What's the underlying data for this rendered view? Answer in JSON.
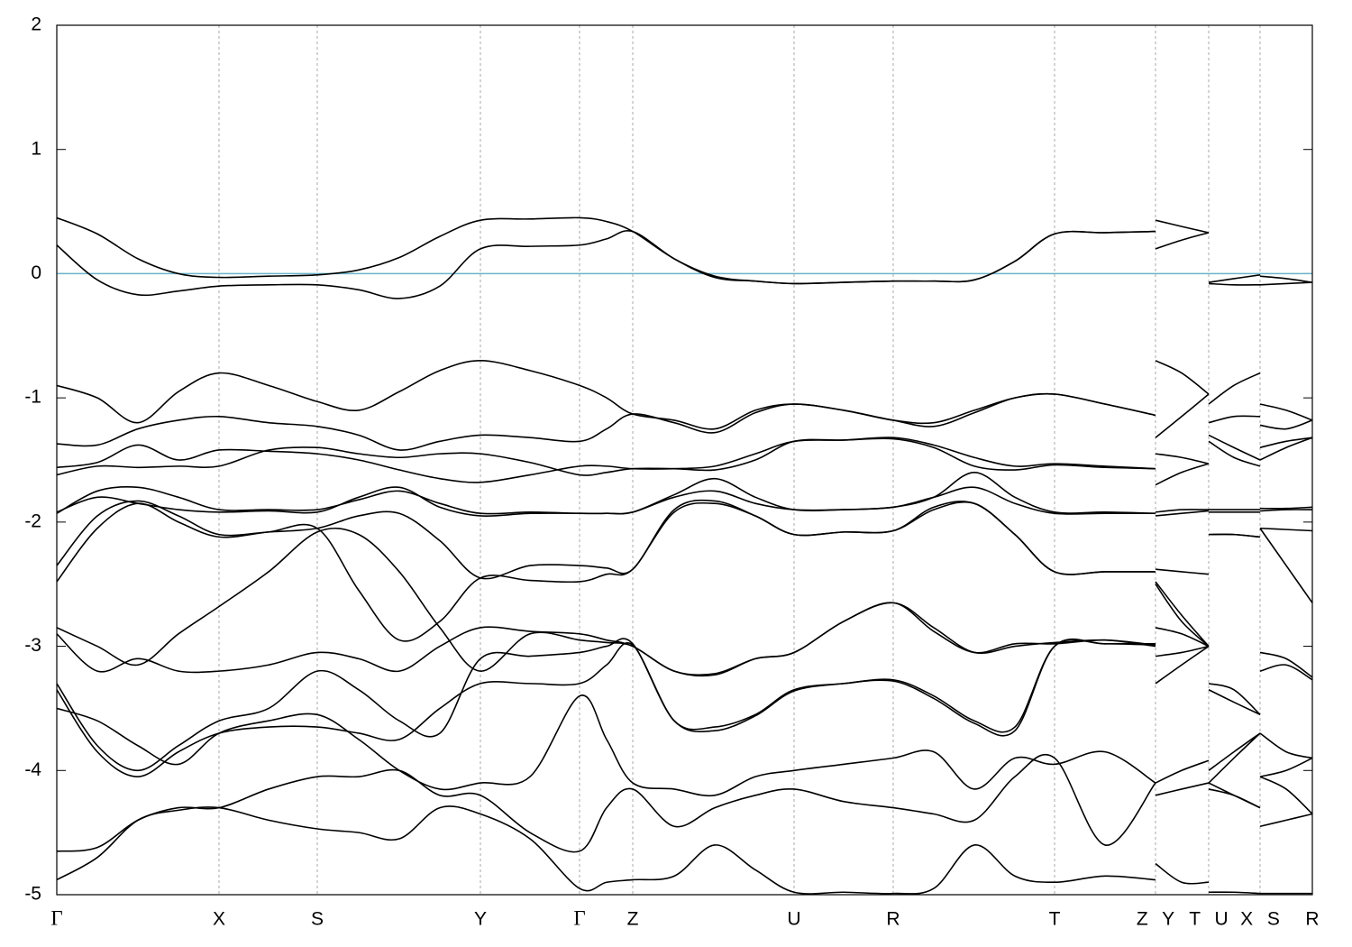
{
  "chart_data": {
    "type": "line",
    "xlim": [
      0,
      1393
    ],
    "xticks": [
      {
        "value": 0,
        "label": "Γ"
      },
      {
        "value": 180,
        "label": "X"
      },
      {
        "value": 289,
        "label": "S"
      },
      {
        "value": 470,
        "label": "Y"
      },
      {
        "value": 580,
        "label": "Γ"
      },
      {
        "value": 639,
        "label": "Z"
      },
      {
        "value": 818,
        "label": "U"
      },
      {
        "value": 928,
        "label": "R"
      },
      {
        "value": 1107,
        "label": "T"
      },
      {
        "value": 1219,
        "label": "Z Y"
      },
      {
        "value": 1278,
        "label": "T U"
      },
      {
        "value": 1335,
        "label": "X S"
      },
      {
        "value": 1393,
        "label": "R"
      }
    ],
    "ylim": [
      -5,
      2
    ],
    "yticks": [
      -5,
      -4,
      -3,
      -2,
      -1,
      0,
      1,
      2
    ],
    "grid": true,
    "hline": {
      "value": 0,
      "color": "#6ab4c9"
    },
    "x": [
      0,
      45,
      90,
      135,
      180,
      235,
      289,
      335,
      380,
      425,
      470,
      525,
      580,
      610,
      639,
      685,
      730,
      775,
      818,
      873,
      928,
      973,
      1018,
      1063,
      1107,
      1163,
      1219,
      1219,
      1219,
      1248,
      1278,
      1278,
      1278,
      1306,
      1335,
      1335,
      1335,
      1364,
      1393
    ],
    "series": [
      {
        "color": "#000000",
        "values": [
          0.45,
          0.32,
          0.12,
          0.0,
          -0.03,
          -0.02,
          -0.01,
          0.03,
          0.13,
          0.3,
          0.43,
          0.44,
          0.45,
          0.42,
          0.34,
          0.12,
          -0.02,
          -0.06,
          -0.08,
          -0.07,
          -0.06,
          -0.06,
          -0.05,
          0.1,
          0.32,
          0.33,
          0.34,
          null,
          0.43,
          0.38,
          0.33,
          null,
          -0.07,
          -0.04,
          -0.01,
          null,
          -0.09,
          -0.08,
          -0.07
        ]
      },
      {
        "color": "#000000",
        "values": [
          0.23,
          -0.05,
          -0.17,
          -0.14,
          -0.1,
          -0.09,
          -0.09,
          -0.13,
          -0.2,
          -0.1,
          0.2,
          0.22,
          0.23,
          0.28,
          0.34,
          0.12,
          -0.03,
          -0.06,
          -0.08,
          -0.07,
          -0.06,
          -0.06,
          -0.05,
          0.1,
          0.32,
          0.33,
          0.34,
          null,
          0.2,
          0.27,
          0.33,
          null,
          -0.08,
          -0.09,
          -0.09,
          null,
          -0.02,
          -0.04,
          -0.07
        ]
      },
      {
        "color": "#000000",
        "values": [
          -0.9,
          -1.0,
          -1.2,
          -0.95,
          -0.8,
          -0.9,
          -1.03,
          -1.1,
          -0.95,
          -0.78,
          -0.7,
          -0.78,
          -0.9,
          -1.0,
          -1.13,
          -1.18,
          -1.25,
          -1.1,
          -1.05,
          -1.1,
          -1.18,
          -1.2,
          -1.1,
          -1.0,
          -0.97,
          -1.05,
          -1.14,
          null,
          -0.7,
          -0.8,
          -0.97,
          null,
          -1.05,
          -0.9,
          -0.8,
          null,
          -1.05,
          -1.1,
          -1.18
        ]
      },
      {
        "color": "#000000",
        "values": [
          -1.37,
          -1.38,
          -1.25,
          -1.18,
          -1.15,
          -1.2,
          -1.23,
          -1.3,
          -1.42,
          -1.35,
          -1.3,
          -1.32,
          -1.35,
          -1.25,
          -1.13,
          -1.2,
          -1.28,
          -1.12,
          -1.05,
          -1.1,
          -1.18,
          -1.23,
          -1.12,
          -1.0,
          -0.97,
          -1.05,
          -1.14,
          null,
          -1.32,
          -1.15,
          -0.97,
          null,
          -1.2,
          -1.15,
          -1.15,
          null,
          -1.22,
          -1.25,
          -1.18
        ]
      },
      {
        "color": "#000000",
        "values": [
          -1.56,
          -1.52,
          -1.38,
          -1.5,
          -1.42,
          -1.43,
          -1.45,
          -1.5,
          -1.58,
          -1.65,
          -1.68,
          -1.62,
          -1.55,
          -1.55,
          -1.57,
          -1.57,
          -1.55,
          -1.45,
          -1.35,
          -1.34,
          -1.32,
          -1.38,
          -1.48,
          -1.55,
          -1.53,
          -1.55,
          -1.57,
          null,
          -1.45,
          -1.48,
          -1.53,
          null,
          -1.3,
          -1.4,
          -1.5,
          null,
          -1.4,
          -1.35,
          -1.32
        ]
      },
      {
        "color": "#000000",
        "values": [
          -1.62,
          -1.55,
          -1.56,
          -1.55,
          -1.55,
          -1.42,
          -1.4,
          -1.45,
          -1.48,
          -1.45,
          -1.45,
          -1.52,
          -1.62,
          -1.6,
          -1.57,
          -1.57,
          -1.58,
          -1.5,
          -1.35,
          -1.34,
          -1.33,
          -1.4,
          -1.55,
          -1.58,
          -1.54,
          -1.56,
          -1.57,
          null,
          -1.7,
          -1.6,
          -1.53,
          null,
          -1.35,
          -1.48,
          -1.55,
          null,
          -1.5,
          -1.4,
          -1.32
        ]
      },
      {
        "color": "#000000",
        "values": [
          -1.93,
          -1.75,
          -1.72,
          -1.8,
          -1.9,
          -1.9,
          -1.9,
          -1.82,
          -1.75,
          -1.85,
          -1.93,
          -1.92,
          -1.93,
          -1.93,
          -1.92,
          -1.78,
          -1.65,
          -1.8,
          -1.9,
          -1.9,
          -1.88,
          -1.8,
          -1.6,
          -1.8,
          -1.92,
          -1.92,
          -1.93,
          null,
          -1.92,
          -1.9,
          -1.9,
          null,
          -1.9,
          -1.9,
          -1.9,
          null,
          -1.89,
          -1.89,
          -1.88
        ]
      },
      {
        "color": "#000000",
        "values": [
          -1.92,
          -1.8,
          -1.85,
          -1.9,
          -1.92,
          -1.91,
          -1.92,
          -1.8,
          -1.72,
          -1.88,
          -1.95,
          -1.93,
          -1.93,
          -1.93,
          -1.92,
          -1.8,
          -1.75,
          -1.85,
          -1.9,
          -1.9,
          -1.88,
          -1.8,
          -1.72,
          -1.85,
          -1.93,
          -1.93,
          -1.93,
          null,
          -1.95,
          -1.93,
          -1.91,
          null,
          -1.92,
          -1.92,
          -1.92,
          null,
          -1.91,
          -1.9,
          -1.9
        ]
      },
      {
        "color": "#000000",
        "values": [
          -2.35,
          -1.95,
          -1.83,
          -1.95,
          -2.1,
          -2.08,
          -2.05,
          -1.95,
          -1.93,
          -2.15,
          -2.45,
          -2.35,
          -2.35,
          -2.37,
          -2.38,
          -1.9,
          -1.83,
          -1.95,
          -2.1,
          -2.08,
          -2.07,
          -1.9,
          -1.85,
          -2.1,
          -2.4,
          -2.4,
          -2.4,
          null,
          -2.38,
          -2.4,
          -2.42,
          null,
          -2.1,
          -2.1,
          -2.12,
          null,
          -2.05,
          -2.06,
          -2.07
        ]
      },
      {
        "color": "#000000",
        "values": [
          -2.48,
          -2.05,
          -1.85,
          -2.0,
          -2.12,
          -2.08,
          -2.05,
          -2.55,
          -2.95,
          -2.8,
          -2.45,
          -2.47,
          -2.48,
          -2.42,
          -2.38,
          -1.92,
          -1.85,
          -1.95,
          -2.1,
          -2.08,
          -2.07,
          -1.88,
          -1.85,
          -2.1,
          -2.4,
          -2.4,
          -2.4,
          null,
          -2.48,
          -2.75,
          -3.0,
          null,
          -2.1,
          -2.1,
          -2.12,
          null,
          -2.05,
          -2.35,
          -2.65
        ]
      },
      {
        "color": "#000000",
        "values": [
          -2.85,
          -3.0,
          -3.15,
          -2.9,
          -2.68,
          -2.4,
          -2.08,
          -2.1,
          -2.4,
          -2.85,
          -3.2,
          -2.9,
          -2.95,
          -2.97,
          -3.0,
          -3.2,
          -3.22,
          -3.1,
          -3.05,
          -2.8,
          -2.65,
          -2.85,
          -3.05,
          -3.0,
          -2.97,
          -2.95,
          -2.99,
          null,
          -2.85,
          -2.9,
          -3.0,
          null,
          -3.35,
          -3.45,
          -3.55,
          null,
          -3.05,
          -3.1,
          -3.25
        ]
      },
      {
        "color": "#000000",
        "values": [
          -2.9,
          -3.2,
          -3.1,
          -3.2,
          -3.2,
          -3.15,
          -3.05,
          -3.1,
          -3.2,
          -3.0,
          -2.85,
          -2.88,
          -2.9,
          -2.95,
          -3.0,
          -3.2,
          -3.23,
          -3.1,
          -3.05,
          -2.8,
          -2.65,
          -2.88,
          -3.05,
          -2.98,
          -2.98,
          -2.95,
          -3.0,
          null,
          -3.08,
          -3.05,
          -3.0,
          null,
          -3.3,
          -3.35,
          -3.55,
          null,
          -3.2,
          -3.15,
          -3.27
        ]
      },
      {
        "color": "#000000",
        "values": [
          -3.3,
          -3.8,
          -4.0,
          -3.8,
          -3.6,
          -3.5,
          -3.2,
          -3.35,
          -3.6,
          -3.7,
          -3.1,
          -3.08,
          -3.05,
          -3.0,
          -2.98,
          -3.6,
          -3.65,
          -3.55,
          -3.35,
          -3.3,
          -3.27,
          -3.4,
          -3.6,
          -3.65,
          -3.0,
          -2.98,
          -2.98,
          null,
          -3.3,
          -3.15,
          -3.0,
          null,
          -4.0,
          -3.85,
          -3.7,
          null,
          -3.7,
          -3.85,
          -3.9
        ]
      },
      {
        "color": "#000000",
        "values": [
          -3.35,
          -3.85,
          -4.05,
          -3.85,
          -3.7,
          -3.65,
          -3.65,
          -3.7,
          -3.75,
          -3.5,
          -3.3,
          -3.3,
          -3.3,
          -3.15,
          -2.99,
          -3.6,
          -3.68,
          -3.56,
          -3.36,
          -3.3,
          -3.28,
          -3.42,
          -3.62,
          -3.68,
          -3.0,
          -2.98,
          -2.99,
          null,
          -2.5,
          -2.8,
          -3.0,
          null,
          -4.1,
          -3.9,
          -3.7,
          null,
          -4.05,
          -4.0,
          -3.9
        ]
      },
      {
        "color": "#000000",
        "values": [
          -3.5,
          -3.6,
          -3.8,
          -3.95,
          -3.7,
          -3.6,
          -3.55,
          -3.75,
          -4.0,
          -4.15,
          -4.1,
          -4.05,
          -3.4,
          -3.75,
          -4.1,
          -4.15,
          -4.2,
          -4.05,
          -4.0,
          -3.95,
          -3.9,
          -3.85,
          -4.15,
          -3.9,
          -3.95,
          -3.85,
          -4.1,
          null,
          -4.1,
          -4.0,
          -3.92,
          null,
          -4.1,
          -4.2,
          -4.3,
          null,
          -4.45,
          -4.4,
          -4.35
        ]
      },
      {
        "color": "#000000",
        "values": [
          -4.65,
          -4.62,
          -4.4,
          -4.3,
          -4.3,
          -4.15,
          -4.05,
          -4.05,
          -4.0,
          -4.2,
          -4.2,
          -4.5,
          -4.65,
          -4.3,
          -4.15,
          -4.45,
          -4.3,
          -4.2,
          -4.15,
          -4.25,
          -4.3,
          -4.35,
          -4.4,
          -4.05,
          -3.9,
          -4.6,
          -4.1,
          null,
          -4.2,
          -4.15,
          -4.1,
          null,
          -4.15,
          -4.2,
          -4.3,
          null,
          -4.05,
          -4.15,
          -4.35
        ]
      },
      {
        "color": "#000000",
        "values": [
          -4.88,
          -4.7,
          -4.4,
          -4.32,
          -4.3,
          -4.4,
          -4.47,
          -4.5,
          -4.55,
          -4.3,
          -4.35,
          -4.55,
          -4.95,
          -4.9,
          -4.88,
          -4.85,
          -4.6,
          -4.8,
          -4.98,
          -4.98,
          -4.99,
          -4.95,
          -4.6,
          -4.85,
          -4.9,
          -4.85,
          -4.88,
          null,
          -4.75,
          -4.9,
          -4.9,
          null,
          -4.98,
          -4.98,
          -4.99,
          null,
          -4.99,
          -4.99,
          -4.99
        ]
      }
    ]
  }
}
